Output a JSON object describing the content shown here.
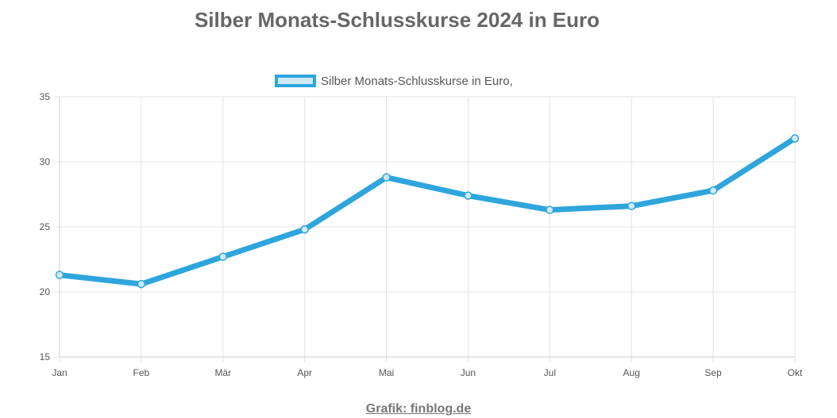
{
  "chart_data": {
    "type": "line",
    "title": "Silber Monats-Schlusskurse 2024 in Euro",
    "categories": [
      "Jan",
      "Feb",
      "Mär",
      "Apr",
      "Mai",
      "Jun",
      "Jul",
      "Aug",
      "Sep",
      "Okt"
    ],
    "series": [
      {
        "name": "Silber Monats-Schlusskurse in Euro,",
        "values": [
          21.3,
          20.6,
          22.7,
          24.8,
          28.8,
          27.4,
          26.3,
          26.6,
          27.8,
          31.8
        ],
        "color": "#2ea5dc"
      }
    ],
    "ylim": [
      15,
      35
    ],
    "yticks": [
      15,
      20,
      25,
      30,
      35
    ],
    "grid": true,
    "legend_position": "top-center",
    "xlabel": "",
    "ylabel": ""
  },
  "credit": "Grafik: finblog.de"
}
